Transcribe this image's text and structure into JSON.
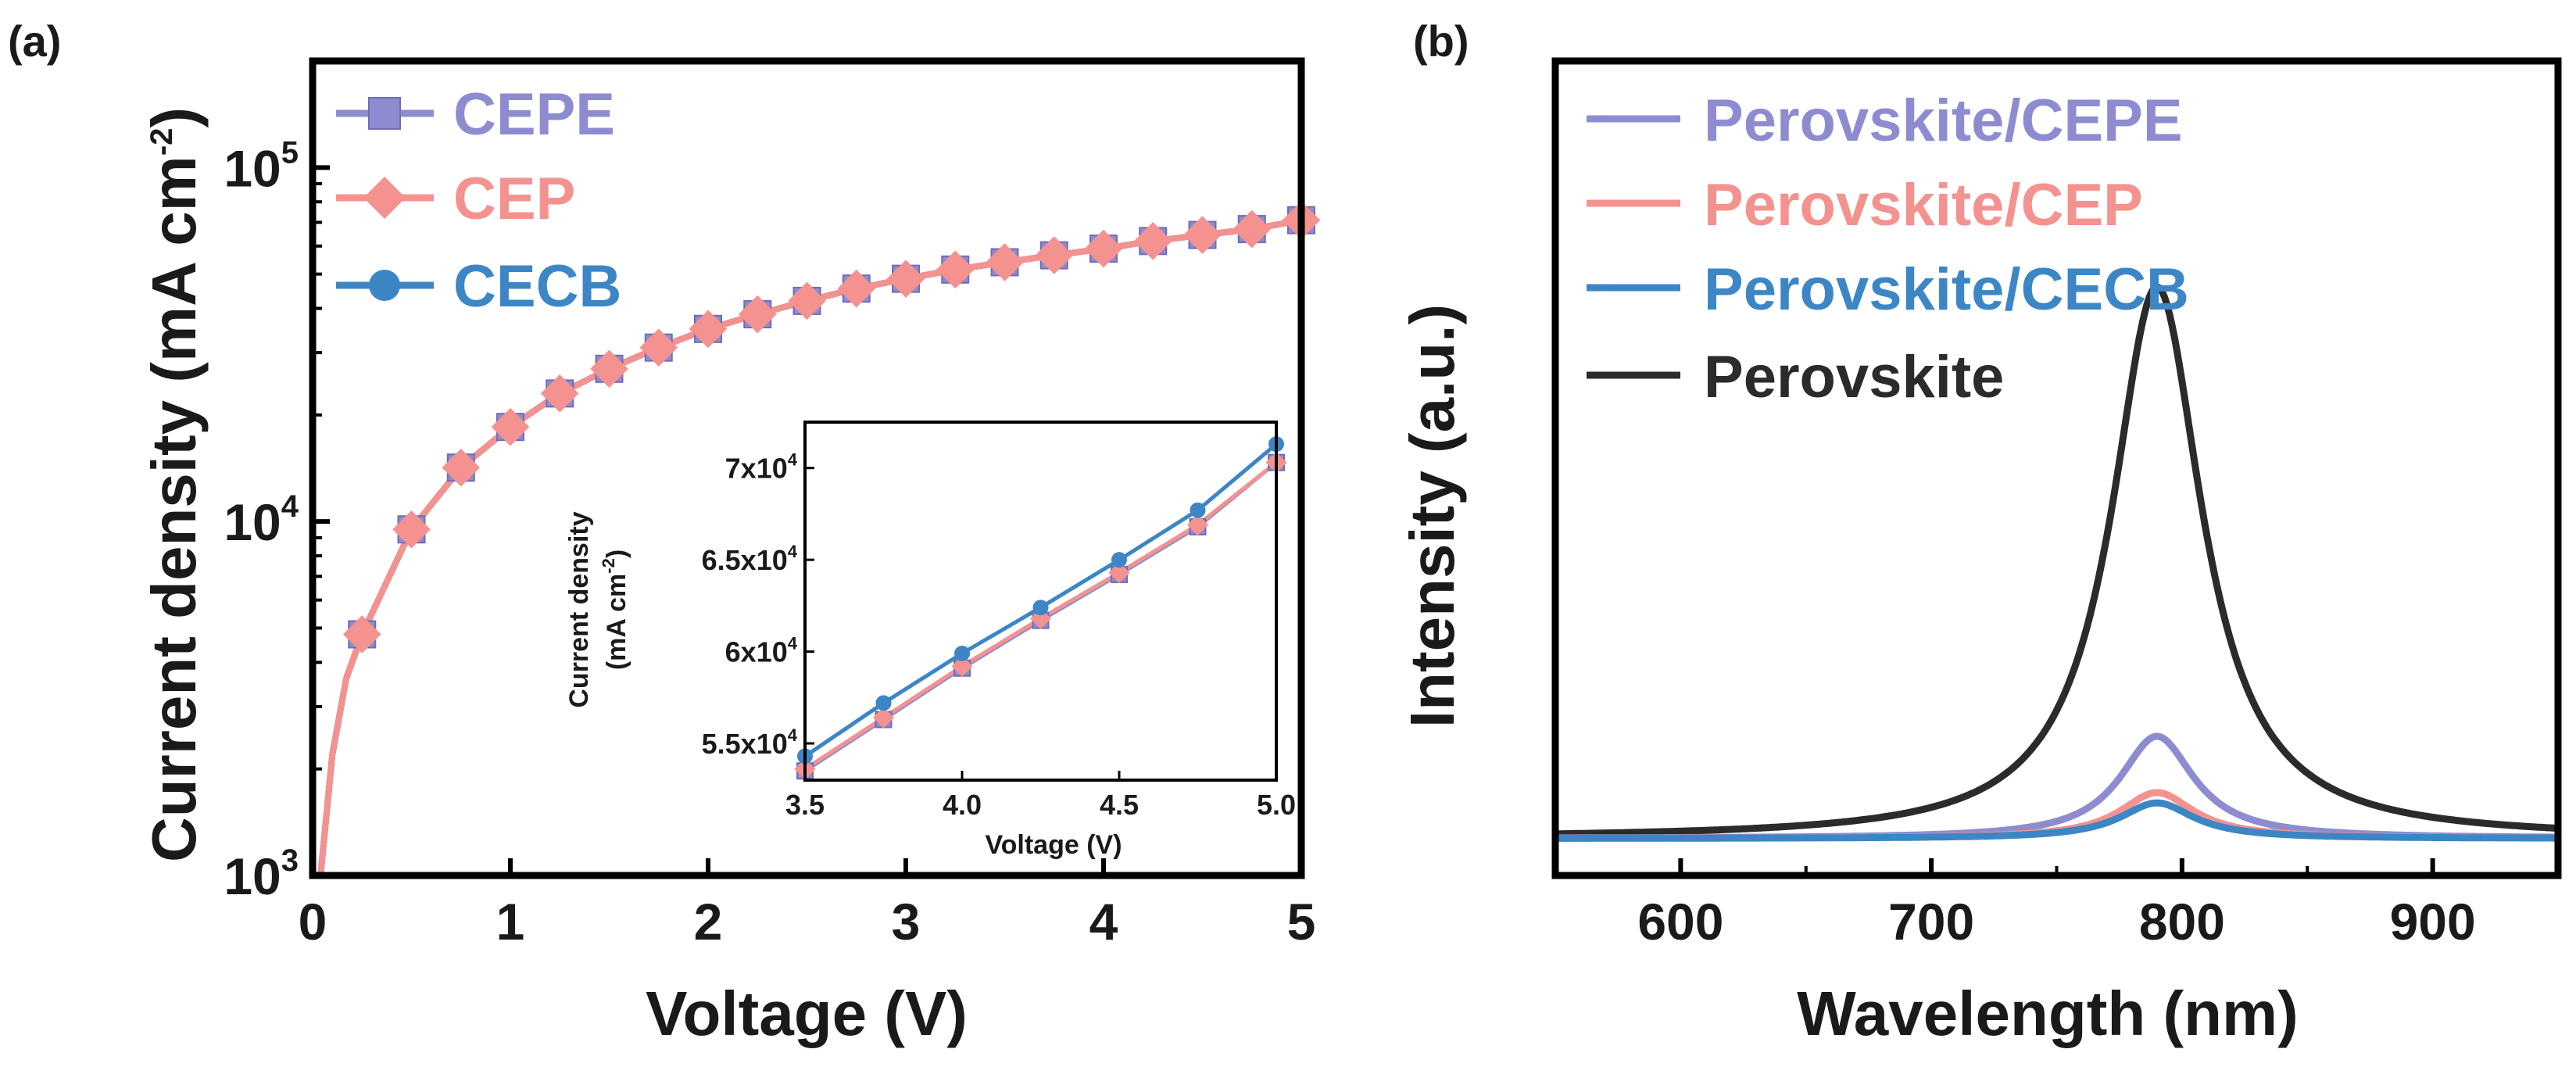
{
  "panels": {
    "a": {
      "label": "(a)"
    },
    "b": {
      "label": "(b)"
    }
  },
  "colors": {
    "CEPE": "#8e8cd0",
    "CEP": "#f4928f",
    "CECB": "#3d86c6",
    "Perovskite": "#2b2b2b",
    "axis": "#000000"
  },
  "chart_data": [
    {
      "id": "a",
      "type": "line",
      "title": "",
      "xlabel": "Voltage (V)",
      "ylabel": "Current density (mA cm",
      "ylabel_sup": "-2",
      "ylabel_close": ")",
      "xlim": [
        0,
        5
      ],
      "ylim": [
        1000,
        200000
      ],
      "yscale": "log",
      "x_ticks": [
        0,
        1,
        2,
        3,
        4,
        5
      ],
      "x_tick_labels": [
        "0",
        "1",
        "2",
        "3",
        "4",
        "5"
      ],
      "y_ticks": [
        {
          "value": 1000,
          "base": "10",
          "exp": "3"
        },
        {
          "value": 10000,
          "base": "10",
          "exp": "4"
        },
        {
          "value": 100000,
          "base": "10",
          "exp": "5"
        }
      ],
      "legend": [
        "CEPE",
        "CEP",
        "CECB"
      ],
      "legend_position": "top-left",
      "x": [
        0.25,
        0.5,
        0.75,
        1.0,
        1.25,
        1.5,
        1.75,
        2.0,
        2.25,
        2.5,
        2.75,
        3.0,
        3.25,
        3.5,
        3.75,
        4.0,
        4.25,
        4.5,
        4.75,
        5.0
      ],
      "series": [
        {
          "name": "CEPE",
          "marker": "square",
          "values": [
            4800,
            9500,
            14200,
            18500,
            23000,
            27000,
            31000,
            35000,
            38500,
            42000,
            45500,
            48500,
            51500,
            54000,
            56500,
            59000,
            62000,
            64500,
            67000,
            71000
          ]
        },
        {
          "name": "CEP",
          "marker": "diamond",
          "values": [
            4800,
            9500,
            14200,
            18500,
            23000,
            27000,
            31000,
            35000,
            38500,
            42000,
            45500,
            48500,
            51500,
            54000,
            56500,
            59000,
            62000,
            64500,
            67000,
            71000
          ]
        },
        {
          "name": "CECB",
          "marker": "circle",
          "values": [
            4800,
            9500,
            14200,
            18500,
            23000,
            27000,
            31000,
            35000,
            38500,
            42000,
            45500,
            48500,
            51500,
            54000,
            56500,
            59000,
            62000,
            64500,
            67000,
            71000
          ]
        }
      ],
      "inset": {
        "type": "line",
        "xlabel": "Voltage (V)",
        "ylabel_line1": "Current density",
        "ylabel_line2": "(mA cm",
        "ylabel_sup": "-2",
        "ylabel_close": ")",
        "xlim": [
          3.5,
          5.0
        ],
        "ylim": [
          53000,
          72500
        ],
        "x_ticks": [
          3.5,
          4.0,
          4.5,
          5.0
        ],
        "x_tick_labels": [
          "3.5",
          "4.0",
          "4.5",
          "5.0"
        ],
        "y_ticks": [
          {
            "value": 55000,
            "base": "5.5x10",
            "exp": "4"
          },
          {
            "value": 60000,
            "base": "6x10",
            "exp": "4"
          },
          {
            "value": 65000,
            "base": "6.5x10",
            "exp": "4"
          },
          {
            "value": 70000,
            "base": "7x10",
            "exp": "4"
          }
        ],
        "x": [
          3.5,
          3.75,
          4.0,
          4.25,
          4.5,
          4.75,
          5.0
        ],
        "series": [
          {
            "name": "CEPE",
            "marker": "square",
            "values": [
              53500,
              56300,
              59100,
              61700,
              64200,
              66800,
              70300
            ]
          },
          {
            "name": "CEP",
            "marker": "diamond",
            "values": [
              53600,
              56400,
              59200,
              61800,
              64300,
              66900,
              70300
            ]
          },
          {
            "name": "CECB",
            "marker": "circle",
            "values": [
              54300,
              57200,
              59900,
              62400,
              65000,
              67700,
              71300
            ]
          }
        ]
      }
    },
    {
      "id": "b",
      "type": "line",
      "title": "",
      "xlabel": "Wavelength (nm)",
      "ylabel": "Intensity (a.u.)",
      "xlim": [
        550,
        950
      ],
      "ylim": [
        -0.05,
        1.05
      ],
      "x_ticks": [
        600,
        700,
        800,
        900
      ],
      "x_tick_labels": [
        "600",
        "700",
        "800",
        "900"
      ],
      "legend": [
        "Perovskite/CEPE",
        "Perovskite/CEP",
        "Perovskite/CECB",
        "Perovskite"
      ],
      "legend_position": "top-left",
      "peak_nm": 790,
      "series": [
        {
          "name": "Perovskite",
          "peak": 790,
          "amplitude": 0.745,
          "width": 22
        },
        {
          "name": "Perovskite/CEPE",
          "peak": 790,
          "amplitude": 0.138,
          "width": 18
        },
        {
          "name": "Perovskite/CEP",
          "peak": 790,
          "amplitude": 0.062,
          "width": 18
        },
        {
          "name": "Perovskite/CECB",
          "peak": 790,
          "amplitude": 0.048,
          "width": 18
        }
      ],
      "baseline": 0.0
    }
  ]
}
